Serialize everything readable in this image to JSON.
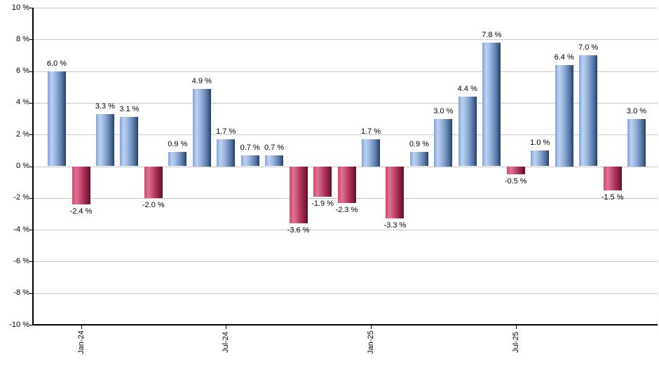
{
  "chart_data": {
    "type": "bar",
    "title": "",
    "unit": "%",
    "values": [
      6.0,
      -2.4,
      3.3,
      3.1,
      -2.0,
      0.9,
      4.9,
      1.7,
      0.7,
      0.7,
      -3.6,
      -1.9,
      -2.3,
      1.7,
      -3.3,
      0.9,
      3.0,
      4.4,
      7.8,
      -0.5,
      1.0,
      6.4,
      7.0,
      -1.5,
      3.0
    ],
    "bar_labels": [
      "6.0 %",
      "-2.4 %",
      "3.3 %",
      "3.1 %",
      "-2.0 %",
      "0.9 %",
      "4.9 %",
      "1.7 %",
      "0.7 %",
      "0.7 %",
      "-3.6 %",
      "-1.9 %",
      "-2.3 %",
      "1.7 %",
      "-3.3 %",
      "0.9 %",
      "3.0 %",
      "4.4 %",
      "7.8 %",
      "-0.5 %",
      "1.0 %",
      "6.4 %",
      "7.0 %",
      "-1.5 %",
      "3.0 %"
    ],
    "x_ticks": [
      {
        "label": "Jan-24",
        "bar_index": 1
      },
      {
        "label": "Jul-24",
        "bar_index": 7
      },
      {
        "label": "Jan-25",
        "bar_index": 13
      },
      {
        "label": "Jul-25",
        "bar_index": 19
      }
    ],
    "y_tick_labels": [
      "10 %",
      "8 %",
      "6 %",
      "4 %",
      "2 %",
      "0 %",
      "-2 %",
      "-4 %",
      "-6 %",
      "-8 %",
      "-10 %"
    ],
    "y_tick_values": [
      10,
      8,
      6,
      4,
      2,
      0,
      -2,
      -4,
      -6,
      -8,
      -10
    ],
    "ylim": [
      -10,
      10
    ],
    "grid": true,
    "legend": false,
    "colors": {
      "positive_bar": "#7d9fd6",
      "positive_bar_light": "#bcd1f1",
      "positive_bar_dark": "#223f6b",
      "negative_bar": "#d84568",
      "negative_bar_light": "#de7391",
      "negative_bar_dark": "#5e0f29",
      "gridline": "#c9c9c9",
      "axis": "#000000",
      "label_text": "#000000"
    }
  }
}
